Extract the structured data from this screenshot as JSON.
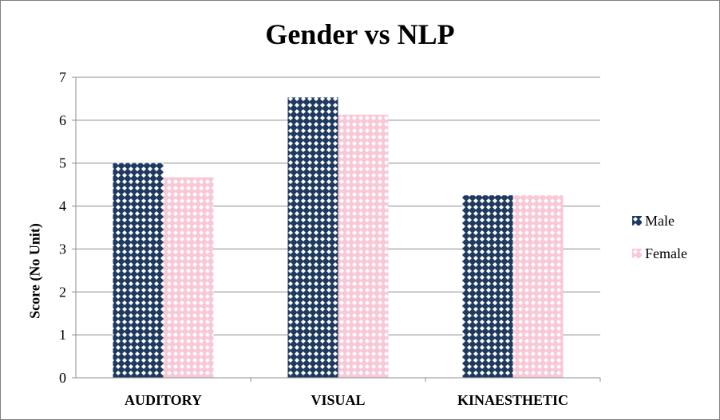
{
  "chart_data": {
    "type": "bar",
    "title": "Gender vs NLP",
    "ylabel": "Score (No Unit)",
    "xlabel": "",
    "categories": [
      "AUDITORY",
      "VISUAL",
      "KINAESTHETIC"
    ],
    "series": [
      {
        "name": "Male",
        "values": [
          5.0,
          6.53,
          4.25
        ],
        "color": "#1f3a5f"
      },
      {
        "name": "Female",
        "values": [
          4.67,
          6.13,
          4.25
        ],
        "color": "#f8c8d6"
      }
    ],
    "ylim": [
      0,
      7
    ],
    "yticks": [
      "0",
      "1",
      "2",
      "3",
      "4",
      "5",
      "6",
      "7"
    ],
    "grid": true,
    "legend": "right"
  }
}
